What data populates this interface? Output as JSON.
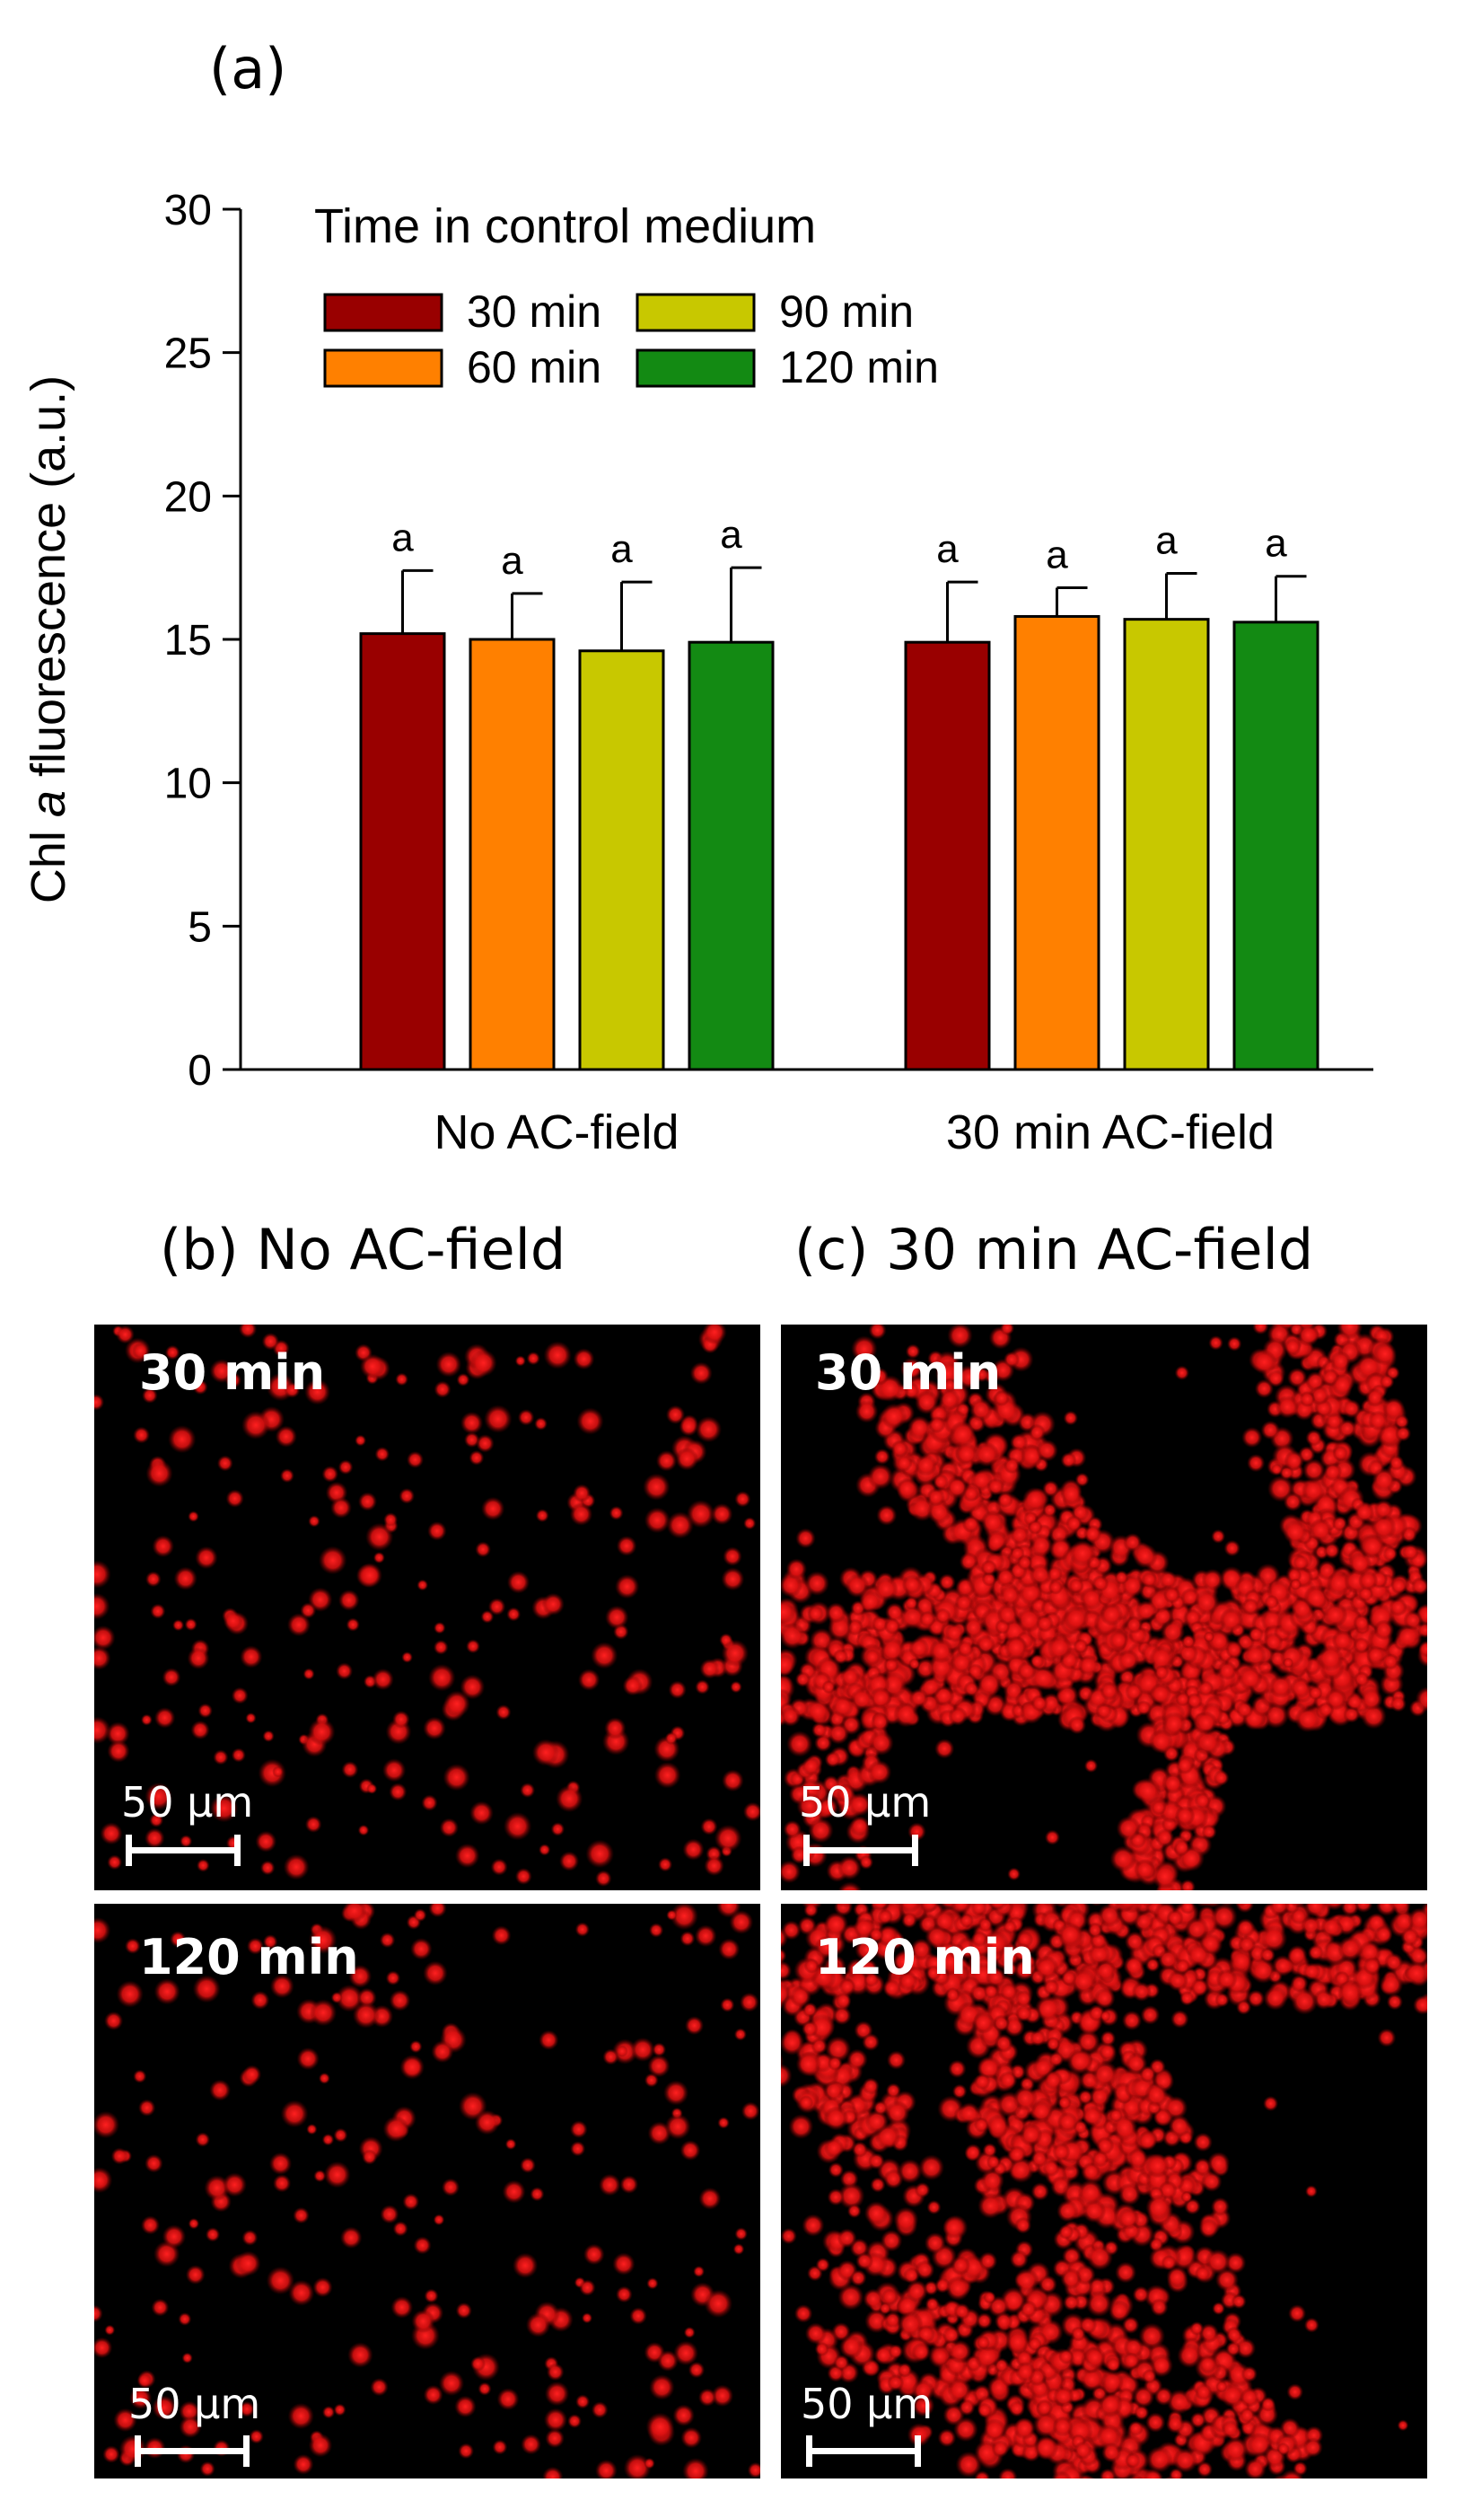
{
  "panel_a_label": "(a)",
  "panel_b_label": "(b) No AC-field",
  "panel_c_label": "(c) 30 min AC-field",
  "colors": {
    "30 min": "#990000",
    "60 min": "#ff8000",
    "90 min": "#c8c800",
    "120 min": "#138a13",
    "fluorescence": "#ff2020",
    "micro_background": "#000000"
  },
  "chart_data": {
    "type": "bar",
    "ylabel_prefix": "Chl ",
    "ylabel_italic": "a",
    "ylabel_suffix": " fluorescence (a.u.)",
    "xlabel": "",
    "ylim": [
      0,
      30
    ],
    "yticks": [
      0,
      5,
      10,
      15,
      20,
      25,
      30
    ],
    "categories": [
      "No AC-field",
      "30 min AC-field"
    ],
    "legend_title": "Time in control medium",
    "legend_position": "top-left",
    "series": [
      {
        "name": "30 min",
        "values": [
          15.2,
          14.9
        ],
        "errors": [
          2.2,
          2.1
        ],
        "sig": [
          "a",
          "a"
        ]
      },
      {
        "name": "60 min",
        "values": [
          15.0,
          15.8
        ],
        "errors": [
          1.6,
          1.0
        ],
        "sig": [
          "a",
          "a"
        ]
      },
      {
        "name": "90 min",
        "values": [
          14.6,
          15.7
        ],
        "errors": [
          2.4,
          1.6
        ],
        "sig": [
          "a",
          "a"
        ]
      },
      {
        "name": "120 min",
        "values": [
          14.9,
          15.6
        ],
        "errors": [
          2.6,
          1.6
        ],
        "sig": [
          "a",
          "a"
        ]
      }
    ]
  },
  "micrographs": [
    {
      "time": "30 min",
      "scale": "50 µm"
    },
    {
      "time": "30 min",
      "scale": "50 µm"
    },
    {
      "time": "120 min",
      "scale": "50 µm"
    },
    {
      "time": "120 min",
      "scale": "50 µm"
    }
  ]
}
